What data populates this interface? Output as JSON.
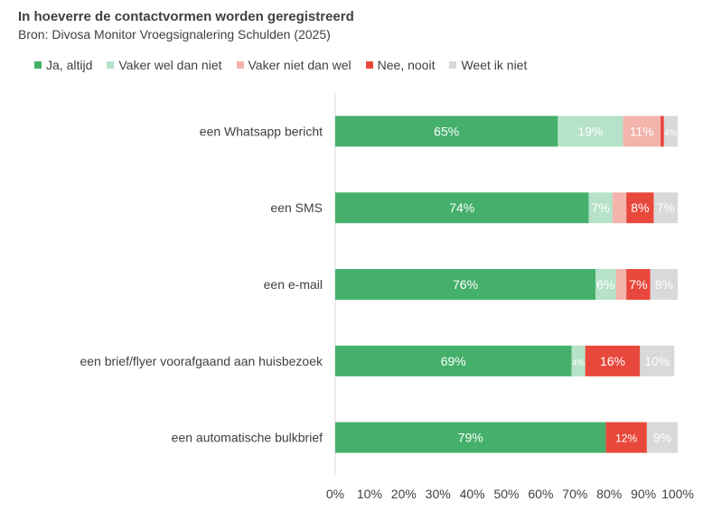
{
  "chart_data": {
    "type": "bar",
    "orientation": "horizontal",
    "stacked": true,
    "title": "In hoeverre de contactvormen worden geregistreerd",
    "subtitle": "Bron: Divosa Monitor Vroegsignalering Schulden (2025)",
    "categories": [
      "een Whatsapp bericht",
      "een SMS",
      "een e-mail",
      "een brief/flyer voorafgaand aan huisbezoek",
      "een automatische bulkbrief"
    ],
    "series": [
      {
        "name": "Ja, altijd",
        "color": "#45b06b",
        "values": [
          65,
          74,
          76,
          69,
          79
        ],
        "labels": [
          "65%",
          "74%",
          "76%",
          "69%",
          "79%"
        ],
        "label_color": "#ffffff"
      },
      {
        "name": "Vaker wel dan niet",
        "color": "#b5e2c8",
        "values": [
          19,
          7,
          6,
          4,
          0
        ],
        "labels": [
          "19%",
          "7%",
          "6%",
          "4%",
          ""
        ],
        "label_color": "#ffffff"
      },
      {
        "name": "Vaker niet dan wel",
        "color": "#f3b4ac",
        "values": [
          11,
          4,
          3,
          0,
          0
        ],
        "labels": [
          "11%",
          "",
          "",
          "",
          ""
        ],
        "label_color": "#ffffff"
      },
      {
        "name": "Nee, nooit",
        "color": "#e8483b",
        "values": [
          1,
          8,
          7,
          16,
          12
        ],
        "labels": [
          "",
          "8%",
          "7%",
          "16%",
          "12%"
        ],
        "label_color": "#ffffff"
      },
      {
        "name": "Weet ik niet",
        "color": "#d9d9d9",
        "values": [
          4,
          7,
          8,
          10,
          9
        ],
        "labels": [
          "4%",
          "7%",
          "8%",
          "10%",
          "9%"
        ],
        "label_color": "#ffffff"
      }
    ],
    "xlim": [
      0,
      100
    ],
    "xticks": [
      "0%",
      "10%",
      "20%",
      "30%",
      "40%",
      "50%",
      "60%",
      "70%",
      "80%",
      "90%",
      "100%"
    ],
    "legend_position": "top",
    "grid": false
  }
}
